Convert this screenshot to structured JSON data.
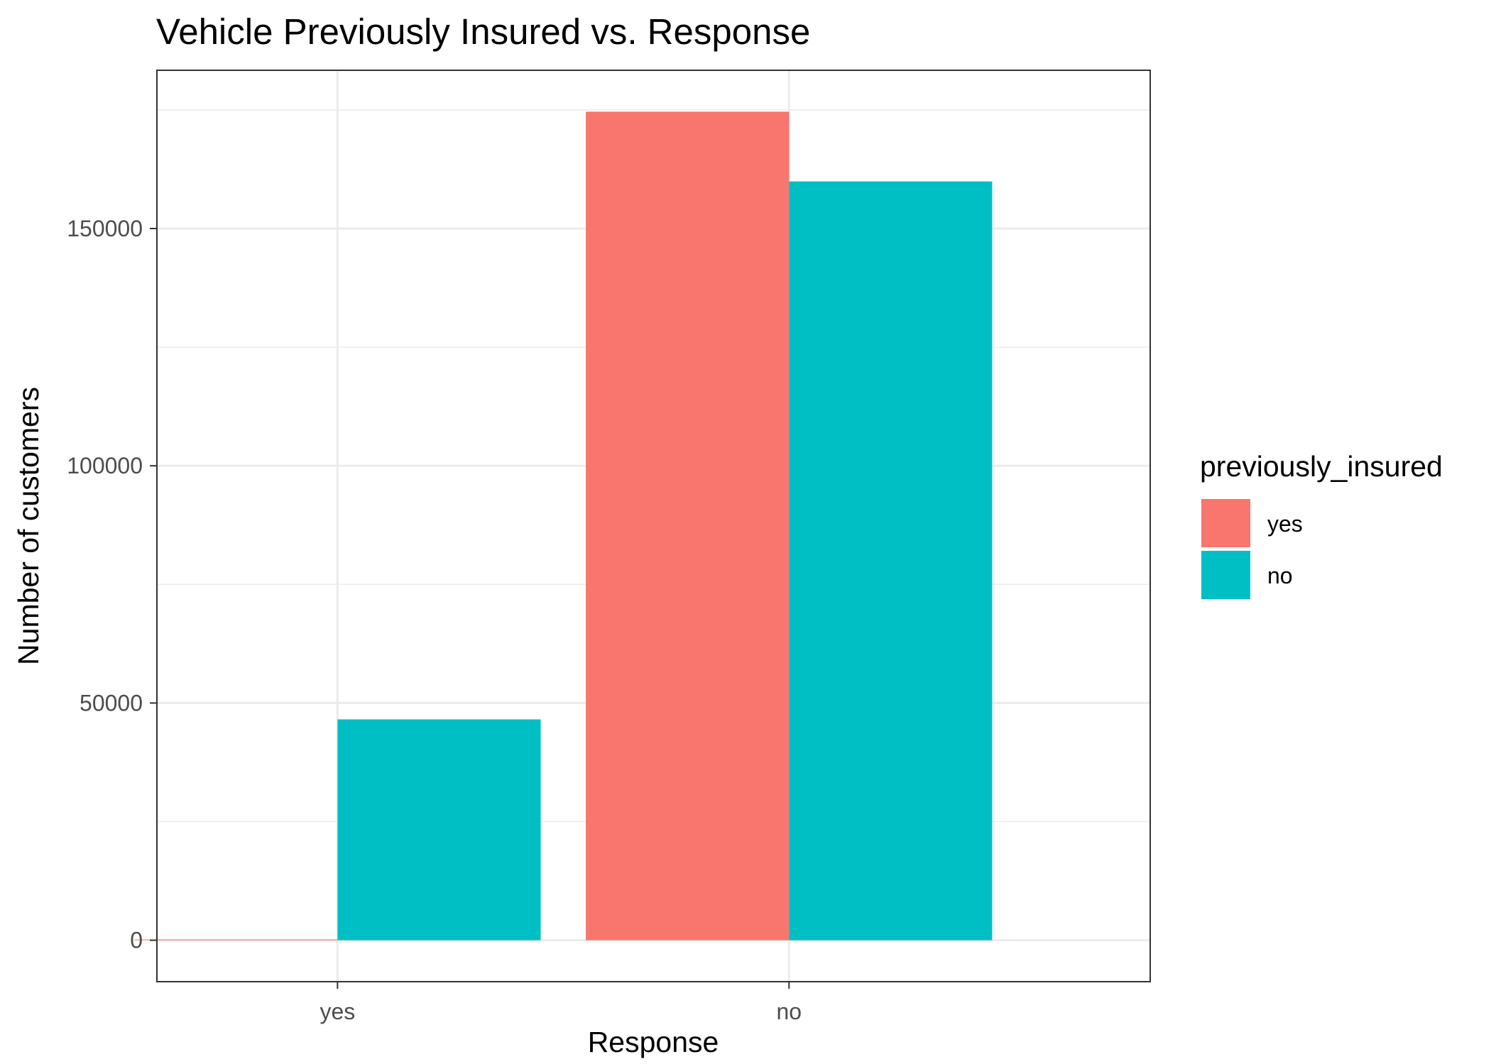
{
  "chart_data": {
    "type": "bar",
    "title": "Vehicle Previously Insured vs. Response",
    "xlabel": "Response",
    "ylabel": "Number of customers",
    "categories": [
      "yes",
      "no"
    ],
    "series": [
      {
        "name": "yes",
        "color": "#F8766D",
        "values": [
          158,
          174628
        ]
      },
      {
        "name": "no",
        "color": "#00BFC4",
        "values": [
          46552,
          159929
        ]
      }
    ],
    "ylim": [
      -8731,
      183359
    ],
    "yticks": [
      0,
      50000,
      100000,
      150000
    ],
    "ytick_labels": [
      "0",
      "50000",
      "100000",
      "150000"
    ],
    "grid": true,
    "legend": {
      "title": "previously_insured",
      "position": "right",
      "entries": [
        "yes",
        "no"
      ]
    }
  }
}
